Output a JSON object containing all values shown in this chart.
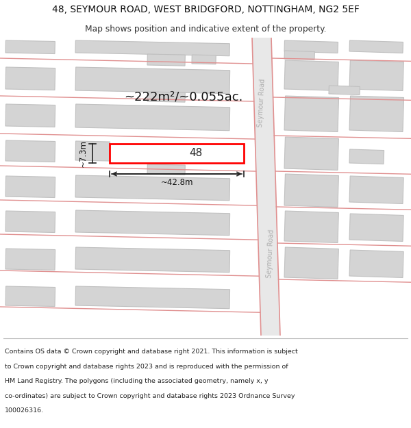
{
  "title_line1": "48, SEYMOUR ROAD, WEST BRIDGFORD, NOTTINGHAM, NG2 5EF",
  "title_line2": "Map shows position and indicative extent of the property.",
  "footer_lines": [
    "Contains OS data © Crown copyright and database right 2021. This information is subject",
    "to Crown copyright and database rights 2023 and is reproduced with the permission of",
    "HM Land Registry. The polygons (including the associated geometry, namely x, y",
    "co-ordinates) are subject to Crown copyright and database rights 2023 Ordnance Survey",
    "100026316."
  ],
  "map_bg": "#f2f2f2",
  "road_fill": "#e8e8e8",
  "road_line_color": "#e09090",
  "building_fill": "#d4d4d4",
  "building_edge": "#c0c0c0",
  "prop_fill": "#ffffff",
  "prop_edge": "#ff0000",
  "area_text": "~222m²/~0.055ac.",
  "width_text": "~42.8m",
  "height_text": "~7.3m",
  "property_number": "48",
  "road_label": "Seymour Road"
}
